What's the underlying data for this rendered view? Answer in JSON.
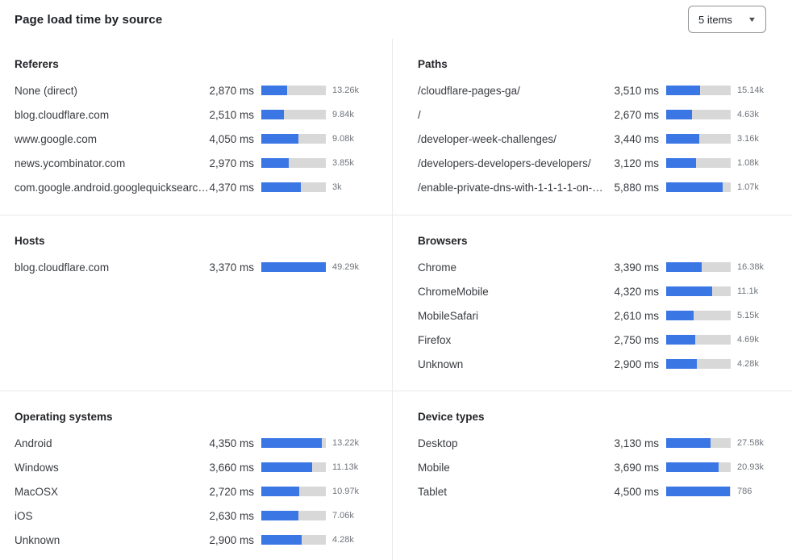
{
  "title": "Page load time by source",
  "dropdown": {
    "value": "5 items",
    "icon": "chevron-down-icon"
  },
  "colors": {
    "bar_fill": "#3b76e5",
    "bar_track": "#d8d8d8",
    "divider": "#e9e9e9"
  },
  "chart_data": [
    {
      "type": "bar",
      "title": "Referers",
      "unit": "ms",
      "bar_scale_max_ms": 7080,
      "rows": [
        {
          "label": "None (direct)",
          "ms": 2870,
          "ms_label": "2,870 ms",
          "count_label": "13.26k"
        },
        {
          "label": "blog.cloudflare.com",
          "ms": 2510,
          "ms_label": "2,510 ms",
          "count_label": "9.84k"
        },
        {
          "label": "www.google.com",
          "ms": 4050,
          "ms_label": "4,050 ms",
          "count_label": "9.08k"
        },
        {
          "label": "news.ycombinator.com",
          "ms": 2970,
          "ms_label": "2,970 ms",
          "count_label": "3.85k"
        },
        {
          "label": "com.google.android.googlequicksearc…",
          "ms": 4370,
          "ms_label": "4,370 ms",
          "count_label": "3k"
        }
      ]
    },
    {
      "type": "bar",
      "title": "Paths",
      "unit": "ms",
      "bar_scale_max_ms": 6680,
      "rows": [
        {
          "label": "/cloudflare-pages-ga/",
          "ms": 3510,
          "ms_label": "3,510 ms",
          "count_label": "15.14k"
        },
        {
          "label": "/",
          "ms": 2670,
          "ms_label": "2,670 ms",
          "count_label": "4.63k"
        },
        {
          "label": "/developer-week-challenges/",
          "ms": 3440,
          "ms_label": "3,440 ms",
          "count_label": "3.16k"
        },
        {
          "label": "/developers-developers-developers/",
          "ms": 3120,
          "ms_label": "3,120 ms",
          "count_label": "1.08k"
        },
        {
          "label": "/enable-private-dns-with-1-1-1-1-on-…",
          "ms": 5880,
          "ms_label": "5,880 ms",
          "count_label": "1.07k"
        }
      ]
    },
    {
      "type": "bar",
      "title": "Hosts",
      "unit": "ms",
      "bar_scale_max_ms": 3370,
      "rows": [
        {
          "label": "blog.cloudflare.com",
          "ms": 3370,
          "ms_label": "3,370 ms",
          "count_label": "49.29k"
        }
      ]
    },
    {
      "type": "bar",
      "title": "Browsers",
      "unit": "ms",
      "bar_scale_max_ms": 6110,
      "rows": [
        {
          "label": "Chrome",
          "ms": 3390,
          "ms_label": "3,390 ms",
          "count_label": "16.38k"
        },
        {
          "label": "ChromeMobile",
          "ms": 4320,
          "ms_label": "4,320 ms",
          "count_label": "11.1k"
        },
        {
          "label": "MobileSafari",
          "ms": 2610,
          "ms_label": "2,610 ms",
          "count_label": "5.15k"
        },
        {
          "label": "Firefox",
          "ms": 2750,
          "ms_label": "2,750 ms",
          "count_label": "4.69k"
        },
        {
          "label": "Unknown",
          "ms": 2900,
          "ms_label": "2,900 ms",
          "count_label": "4.28k"
        }
      ]
    },
    {
      "type": "bar",
      "title": "Operating systems",
      "unit": "ms",
      "bar_scale_max_ms": 4620,
      "rows": [
        {
          "label": "Android",
          "ms": 4350,
          "ms_label": "4,350 ms",
          "count_label": "13.22k"
        },
        {
          "label": "Windows",
          "ms": 3660,
          "ms_label": "3,660 ms",
          "count_label": "11.13k"
        },
        {
          "label": "MacOSX",
          "ms": 2720,
          "ms_label": "2,720 ms",
          "count_label": "10.97k"
        },
        {
          "label": "iOS",
          "ms": 2630,
          "ms_label": "2,630 ms",
          "count_label": "7.06k"
        },
        {
          "label": "Unknown",
          "ms": 2900,
          "ms_label": "2,900 ms",
          "count_label": "4.28k"
        }
      ]
    },
    {
      "type": "bar",
      "title": "Device types",
      "unit": "ms",
      "bar_scale_max_ms": 4540,
      "rows": [
        {
          "label": "Desktop",
          "ms": 3130,
          "ms_label": "3,130 ms",
          "count_label": "27.58k"
        },
        {
          "label": "Mobile",
          "ms": 3690,
          "ms_label": "3,690 ms",
          "count_label": "20.93k"
        },
        {
          "label": "Tablet",
          "ms": 4500,
          "ms_label": "4,500 ms",
          "count_label": "786"
        }
      ]
    }
  ]
}
